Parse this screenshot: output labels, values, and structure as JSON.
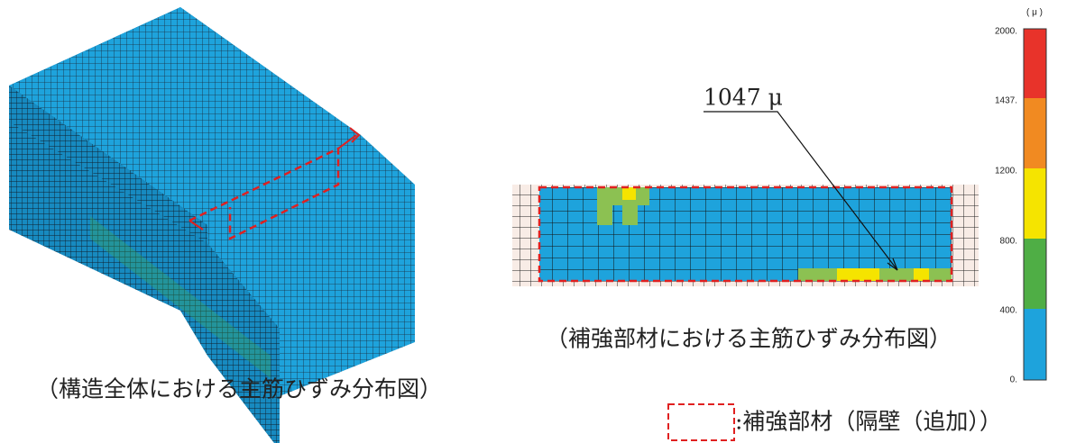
{
  "figure": {
    "overall_caption": "（構造全体における主筋ひずみ分布図）",
    "member_caption": "（補強部材における主筋ひずみ分布図）",
    "peak_label": "1047 μ",
    "scale": {
      "unit": "( μ )",
      "labels": [
        "2000.",
        "1437.",
        "1200.",
        "800.",
        "400.",
        "0."
      ]
    },
    "legend_text": ":補強部材（隔壁（追加））"
  }
}
